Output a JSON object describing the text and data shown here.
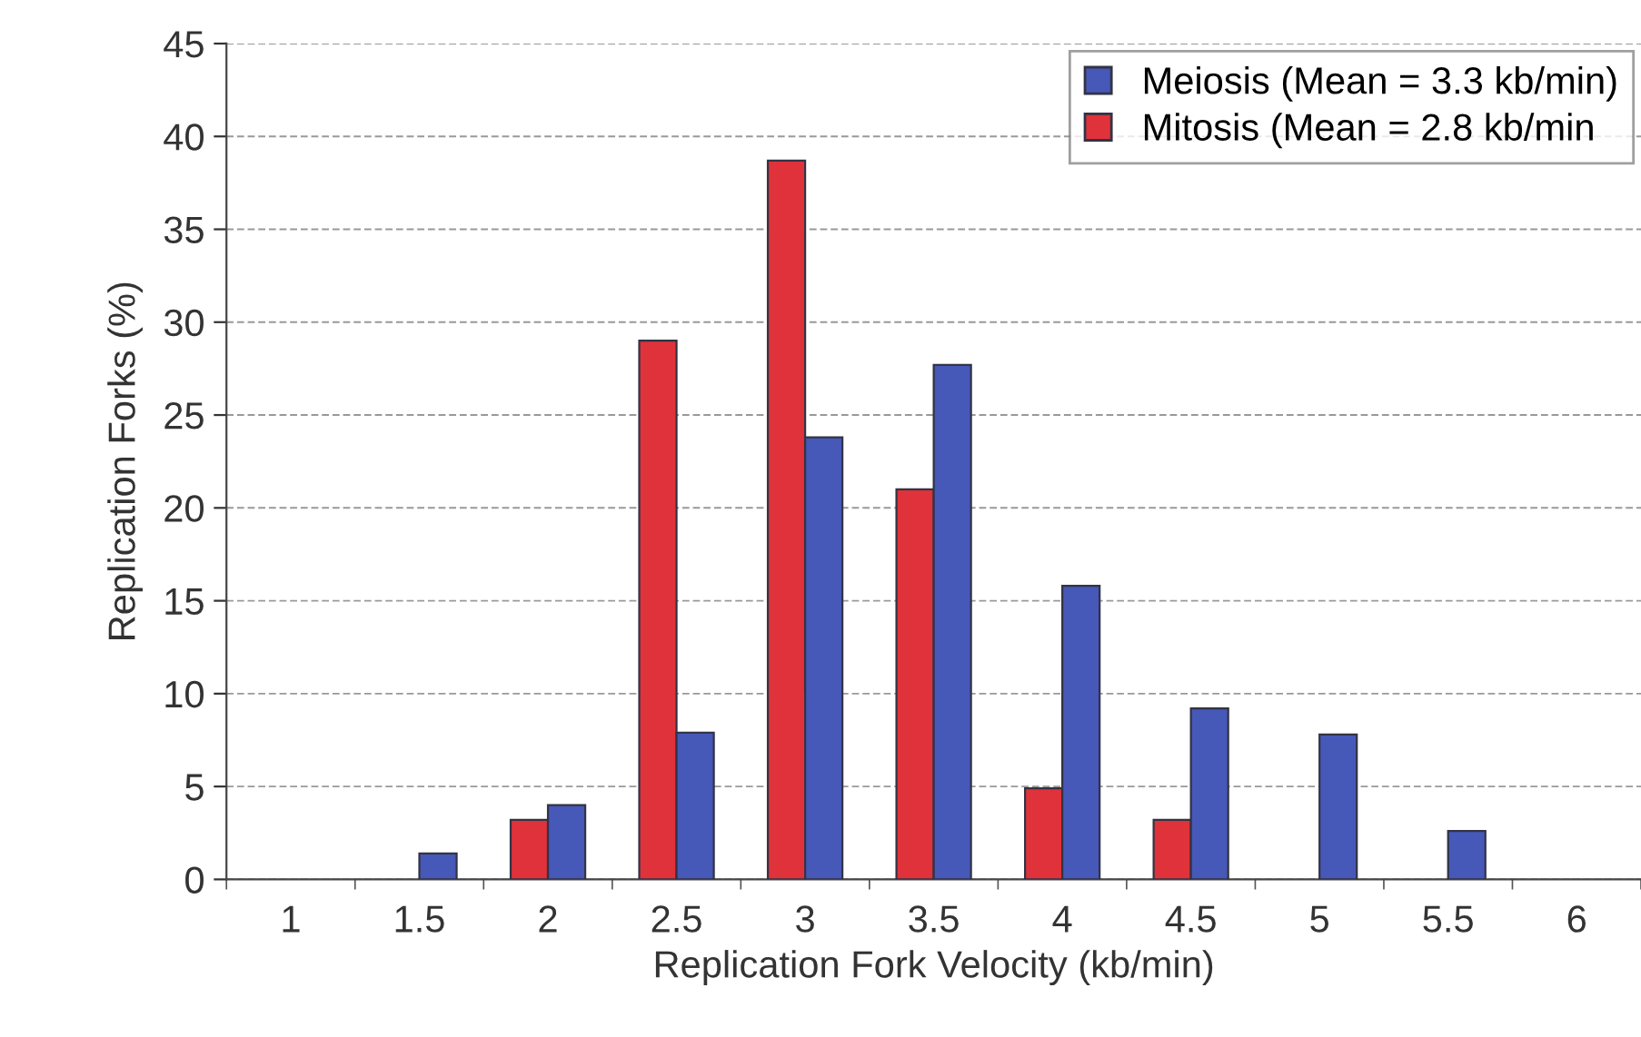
{
  "chart_data": {
    "type": "bar",
    "xlabel": "Replication Fork Velocity (kb/min)",
    "ylabel": "Replication Forks (%)",
    "categories": [
      "1",
      "1.5",
      "2",
      "2.5",
      "3",
      "3.5",
      "4",
      "4.5",
      "5",
      "5.5",
      "6"
    ],
    "series": [
      {
        "name": "Mitosis (Mean = 2.8 kb/min",
        "color": "#e0323a",
        "values": [
          0,
          0,
          3.2,
          29,
          38.7,
          21,
          4.9,
          3.2,
          0,
          0,
          0
        ]
      },
      {
        "name": "Meiosis (Mean = 3.3 kb/min)",
        "color": "#4658b8",
        "values": [
          0,
          1.4,
          4,
          7.9,
          23.8,
          27.7,
          15.8,
          9.2,
          7.8,
          2.6,
          0
        ]
      }
    ],
    "ylim": [
      0,
      45
    ],
    "yticks": [
      0,
      5,
      10,
      15,
      20,
      25,
      30,
      35,
      40,
      45
    ],
    "grid": "y",
    "legend": "top right"
  }
}
